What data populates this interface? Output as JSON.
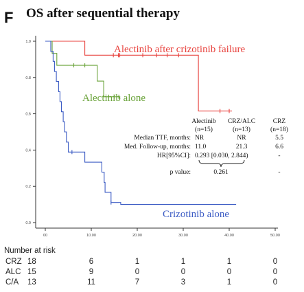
{
  "panel_letter": "F",
  "title": "OS after sequential therapy",
  "colors": {
    "red": "#e8413c",
    "green": "#6aa33a",
    "blue": "#3b5bc4",
    "axis": "#333333"
  },
  "chart_data": {
    "type": "line",
    "title": "OS after sequential therapy",
    "xlabel": "",
    "ylabel": "",
    "xlim": [
      0,
      50
    ],
    "ylim": [
      0,
      1.0
    ],
    "x_ticks": [
      0,
      10,
      20,
      30,
      40,
      50
    ],
    "x_tick_labels": [
      "00",
      "10.00",
      "20.00",
      "30.00",
      "40.00",
      "50.00"
    ],
    "y_ticks": [
      0,
      0.2,
      0.4,
      0.6,
      0.8,
      1.0
    ],
    "y_tick_labels": [
      "0.0",
      "0.2",
      "0.4",
      "0.6",
      "0.8",
      "1.0"
    ],
    "series": [
      {
        "name": "Alectinib after crizotinib failure",
        "color_key": "red",
        "steps": [
          [
            0,
            1.0
          ],
          [
            8.6,
            1.0
          ],
          [
            8.6,
            0.923
          ],
          [
            33.3,
            0.923
          ],
          [
            33.3,
            0.615
          ],
          [
            40.6,
            0.615
          ]
        ],
        "censor": [
          14.8,
          15.9,
          16.2,
          21.2,
          24.2,
          26.5,
          29.0,
          38.0,
          40.0
        ]
      },
      {
        "name": "Alectinib alone",
        "color_key": "green",
        "steps": [
          [
            0,
            1.0
          ],
          [
            1.5,
            1.0
          ],
          [
            1.5,
            0.933
          ],
          [
            2.5,
            0.933
          ],
          [
            2.5,
            0.867
          ],
          [
            11.3,
            0.867
          ],
          [
            11.3,
            0.78
          ],
          [
            12.7,
            0.78
          ],
          [
            12.7,
            0.694
          ],
          [
            16.3,
            0.694
          ]
        ],
        "censor": [
          6.2,
          8.6,
          13.8,
          15.0,
          16.0
        ]
      },
      {
        "name": "Crizotinib alone",
        "color_key": "blue",
        "steps": [
          [
            0,
            1.0
          ],
          [
            1.2,
            1.0
          ],
          [
            1.2,
            0.944
          ],
          [
            1.7,
            0.944
          ],
          [
            1.7,
            0.889
          ],
          [
            2.0,
            0.889
          ],
          [
            2.0,
            0.833
          ],
          [
            2.4,
            0.833
          ],
          [
            2.4,
            0.778
          ],
          [
            2.9,
            0.778
          ],
          [
            2.9,
            0.722
          ],
          [
            3.2,
            0.722
          ],
          [
            3.2,
            0.667
          ],
          [
            3.5,
            0.667
          ],
          [
            3.5,
            0.611
          ],
          [
            3.9,
            0.611
          ],
          [
            3.9,
            0.556
          ],
          [
            4.2,
            0.556
          ],
          [
            4.2,
            0.5
          ],
          [
            4.6,
            0.5
          ],
          [
            4.6,
            0.444
          ],
          [
            5.0,
            0.444
          ],
          [
            5.0,
            0.389
          ],
          [
            8.6,
            0.389
          ],
          [
            8.6,
            0.333
          ],
          [
            12.3,
            0.333
          ],
          [
            12.3,
            0.278
          ],
          [
            12.8,
            0.278
          ],
          [
            12.8,
            0.222
          ],
          [
            13.0,
            0.222
          ],
          [
            13.0,
            0.167
          ],
          [
            14.3,
            0.167
          ],
          [
            14.3,
            0.111
          ],
          [
            16.3,
            0.111
          ],
          [
            16.3,
            0.111
          ],
          [
            16.4,
            0.111
          ],
          [
            16.4,
            0.1
          ],
          [
            41.5,
            0.1
          ]
        ],
        "censor": [
          5.8,
          14.3
        ]
      }
    ],
    "annotations": {
      "header": [
        "Alectinib",
        "CRZ/ALC",
        "CRZ"
      ],
      "subheader": [
        "(n=15)",
        "(n=13)",
        "(n=18)"
      ],
      "rows": [
        {
          "label": "Median TTF, months:",
          "values": [
            "NR",
            "NR",
            "5.5"
          ]
        },
        {
          "label": "Med. Follow-up, months:",
          "values": [
            "11.0",
            "21.3",
            "6.6"
          ]
        },
        {
          "label": "HR[95%CI]:",
          "values": [
            "0.293 [0.030, 2.844)",
            "",
            "-"
          ]
        },
        {
          "label": "p value:",
          "values": [
            "0.261",
            "",
            "-"
          ]
        }
      ]
    }
  },
  "risk_table": {
    "title": "Number at risk",
    "rows": [
      {
        "label": "CRZ",
        "values": [
          "18",
          "6",
          "1",
          "1",
          "1",
          "0"
        ]
      },
      {
        "label": "ALC",
        "values": [
          "15",
          "9",
          "0",
          "0",
          "0",
          "0"
        ]
      },
      {
        "label": "C/A",
        "values": [
          "13",
          "11",
          "7",
          "3",
          "1",
          "0"
        ]
      }
    ]
  }
}
